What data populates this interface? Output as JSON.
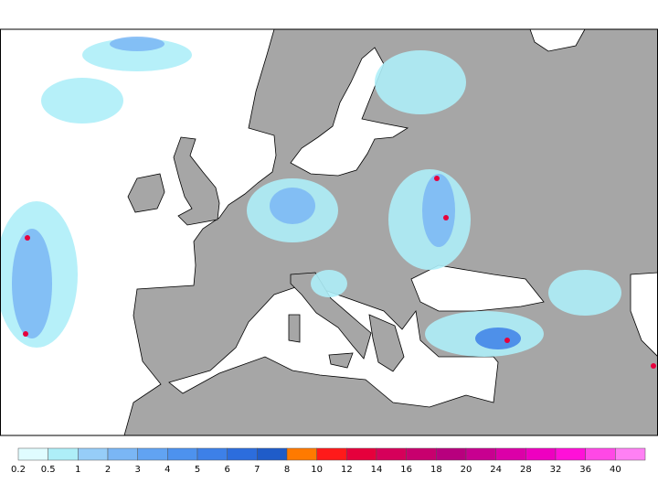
{
  "legend": {
    "ticks": [
      0.2,
      0.5,
      1,
      2,
      3,
      4,
      5,
      6,
      7,
      8,
      10,
      12,
      14,
      16,
      18,
      20,
      24,
      28,
      32,
      36,
      40
    ],
    "colors": [
      "#e0fcff",
      "#aeeef8",
      "#96cdf8",
      "#7ab6f5",
      "#61a3f2",
      "#4d92ee",
      "#3d80e8",
      "#2c6ddd",
      "#1f5cc9",
      "#ff7a00",
      "#ff1a1a",
      "#e6003c",
      "#d6005a",
      "#c8006e",
      "#b8007e",
      "#c80090",
      "#dc00a8",
      "#ee00c0",
      "#ff10d8",
      "#ff48e6",
      "#ff80f4"
    ]
  }
}
